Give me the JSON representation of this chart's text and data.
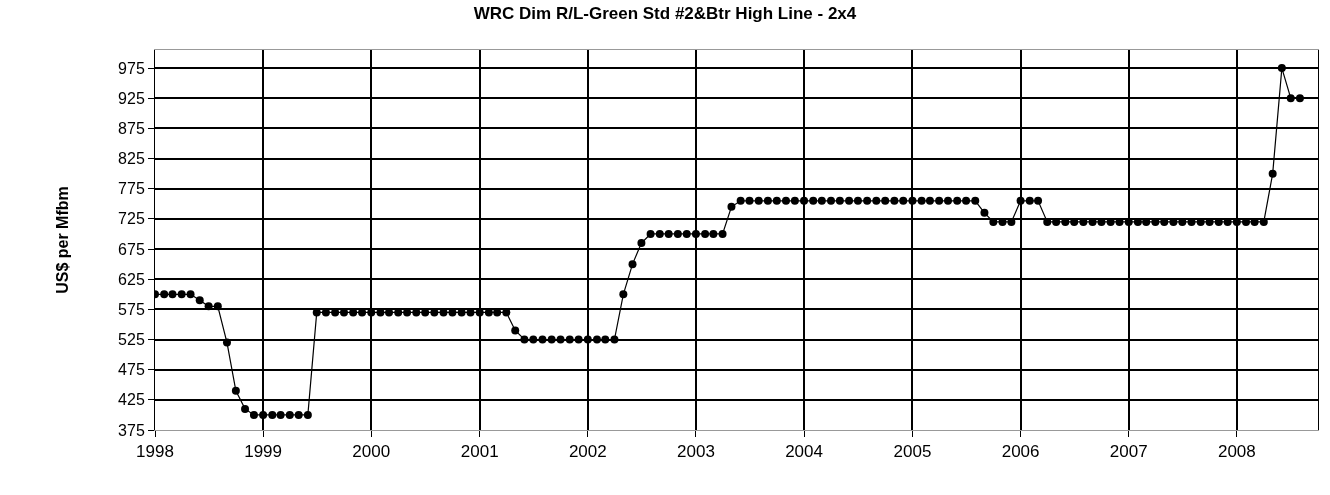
{
  "chart_data": {
    "type": "line",
    "title": "WRC Dim R/L-Green Std #2&Btr High Line - 2x4",
    "ylabel": "US$ per Mfbm",
    "x": [
      "1998-01",
      "1998-02",
      "1998-03",
      "1998-04",
      "1998-05",
      "1998-06",
      "1998-07",
      "1998-08",
      "1998-09",
      "1998-10",
      "1998-11",
      "1998-12",
      "1999-01",
      "1999-02",
      "1999-03",
      "1999-04",
      "1999-05",
      "1999-06",
      "1999-07",
      "1999-08",
      "1999-09",
      "1999-10",
      "1999-11",
      "1999-12",
      "2000-01",
      "2000-02",
      "2000-03",
      "2000-04",
      "2000-05",
      "2000-06",
      "2000-07",
      "2000-08",
      "2000-09",
      "2000-10",
      "2000-11",
      "2000-12",
      "2001-01",
      "2001-02",
      "2001-03",
      "2001-04",
      "2001-05",
      "2001-06",
      "2001-07",
      "2001-08",
      "2001-09",
      "2001-10",
      "2001-11",
      "2001-12",
      "2002-01",
      "2002-02",
      "2002-03",
      "2002-04",
      "2002-05",
      "2002-06",
      "2002-07",
      "2002-08",
      "2002-09",
      "2002-10",
      "2002-11",
      "2002-12",
      "2003-01",
      "2003-02",
      "2003-03",
      "2003-04",
      "2003-05",
      "2003-06",
      "2003-07",
      "2003-08",
      "2003-09",
      "2003-10",
      "2003-11",
      "2003-12",
      "2004-01",
      "2004-02",
      "2004-03",
      "2004-04",
      "2004-05",
      "2004-06",
      "2004-07",
      "2004-08",
      "2004-09",
      "2004-10",
      "2004-11",
      "2004-12",
      "2005-01",
      "2005-02",
      "2005-03",
      "2005-04",
      "2005-05",
      "2005-06",
      "2005-07",
      "2005-08",
      "2005-09",
      "2005-10",
      "2005-11",
      "2005-12",
      "2006-01",
      "2006-02",
      "2006-03",
      "2006-04",
      "2006-05",
      "2006-06",
      "2006-07",
      "2006-08",
      "2006-09",
      "2006-10",
      "2006-11",
      "2006-12",
      "2007-01",
      "2007-02",
      "2007-03",
      "2007-04",
      "2007-05",
      "2007-06",
      "2007-07",
      "2007-08",
      "2007-09",
      "2007-10",
      "2007-11",
      "2007-12",
      "2008-01",
      "2008-02",
      "2008-03",
      "2008-04",
      "2008-05",
      "2008-06",
      "2008-07",
      "2008-08"
    ],
    "series": [
      {
        "color": "#000000",
        "values": [
          600,
          600,
          600,
          600,
          600,
          590,
          580,
          580,
          520,
          440,
          410,
          400,
          400,
          400,
          400,
          400,
          400,
          400,
          570,
          570,
          570,
          570,
          570,
          570,
          570,
          570,
          570,
          570,
          570,
          570,
          570,
          570,
          570,
          570,
          570,
          570,
          570,
          570,
          570,
          570,
          540,
          525,
          525,
          525,
          525,
          525,
          525,
          525,
          525,
          525,
          525,
          525,
          600,
          650,
          685,
          700,
          700,
          700,
          700,
          700,
          700,
          700,
          700,
          700,
          745,
          755,
          755,
          755,
          755,
          755,
          755,
          755,
          755,
          755,
          755,
          755,
          755,
          755,
          755,
          755,
          755,
          755,
          755,
          755,
          755,
          755,
          755,
          755,
          755,
          755,
          755,
          755,
          735,
          720,
          720,
          720,
          755,
          755,
          755,
          720,
          720,
          720,
          720,
          720,
          720,
          720,
          720,
          720,
          720,
          720,
          720,
          720,
          720,
          720,
          720,
          720,
          720,
          720,
          720,
          720,
          720,
          720,
          720,
          720,
          800,
          975,
          925,
          925
        ]
      }
    ],
    "xlim": [
      "1998-01",
      "2008-10"
    ],
    "xticks": [
      {
        "value": "1998",
        "label": "1998"
      },
      {
        "value": "1999",
        "label": "1999"
      },
      {
        "value": "2000",
        "label": "2000"
      },
      {
        "value": "2001",
        "label": "2001"
      },
      {
        "value": "2002",
        "label": "2002"
      },
      {
        "value": "2003",
        "label": "2003"
      },
      {
        "value": "2004",
        "label": "2004"
      },
      {
        "value": "2005",
        "label": "2005"
      },
      {
        "value": "2006",
        "label": "2006"
      },
      {
        "value": "2007",
        "label": "2007"
      },
      {
        "value": "2008",
        "label": "2008"
      }
    ],
    "ylim": [
      375,
      1005
    ],
    "yticks": [
      375,
      425,
      475,
      525,
      575,
      625,
      675,
      725,
      775,
      825,
      875,
      925,
      975
    ],
    "grid": true,
    "marker": "circle",
    "line_style": "solid"
  }
}
